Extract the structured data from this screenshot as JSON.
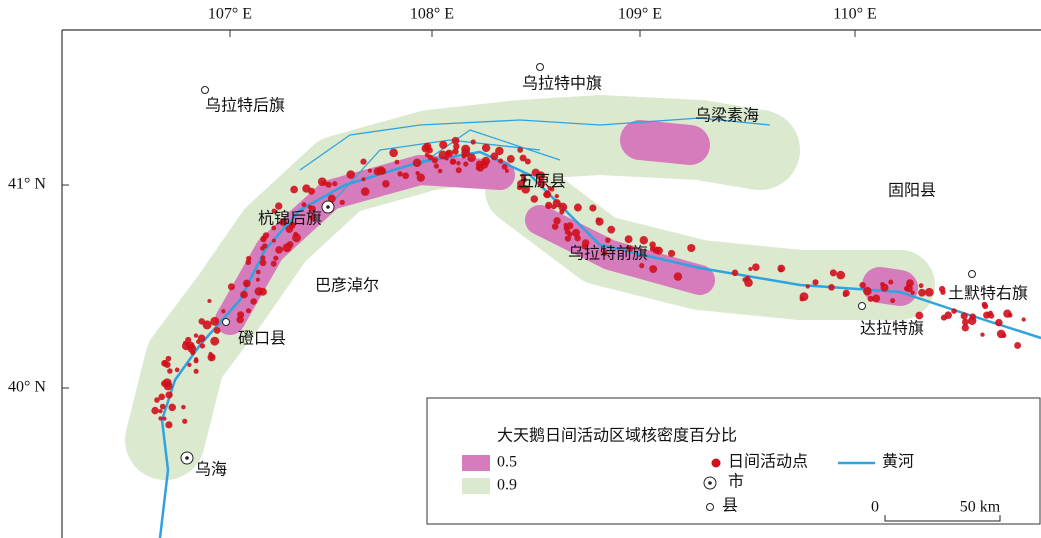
{
  "map": {
    "graticule": {
      "longitudes": [
        "107° E",
        "108° E",
        "109° E",
        "110° E"
      ],
      "latitudes": [
        "41° N",
        "40° N"
      ]
    },
    "places": [
      "乌拉特后旗",
      "乌拉特中旗",
      "乌梁素海",
      "杭锦后旗",
      "五原县",
      "固阳县",
      "乌拉特前旗",
      "巴彦淖尔",
      "磴口县",
      "达拉特旗",
      "土默特右旗",
      "乌海"
    ],
    "legend": {
      "title": "大天鹅日间活动区域核密度百分比",
      "density": [
        "0.5",
        "0.9"
      ],
      "points": "日间活动点",
      "river": "黄河",
      "city": "市",
      "county": "县",
      "scale": [
        "0",
        "50 km"
      ]
    }
  }
}
